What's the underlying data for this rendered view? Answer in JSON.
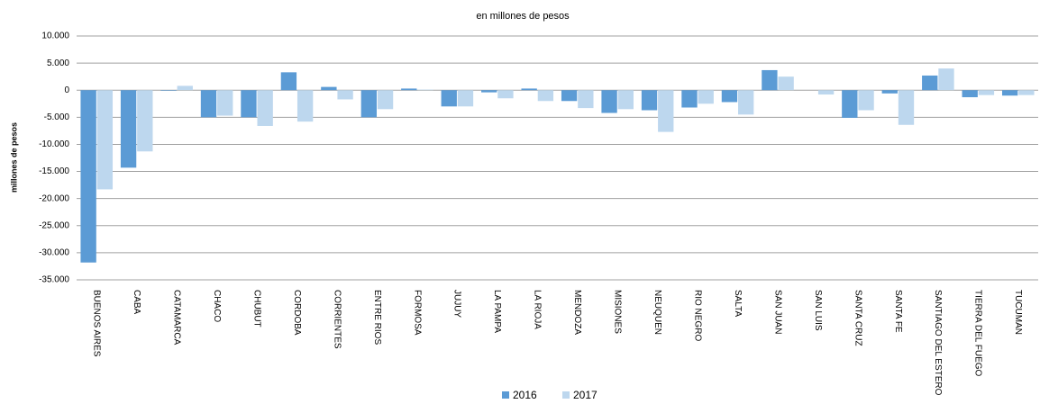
{
  "chart_data": {
    "type": "bar",
    "title": "en millones de pesos",
    "y_label": "millones de pesos",
    "categories": [
      "BUENOS AIRES",
      "CABA",
      "CATAMARCA",
      "CHACO",
      "CHUBUT",
      "CORDOBA",
      "CORRIENTES",
      "ENTRE RIOS",
      "FORMOSA",
      "JUJUY",
      "LA PAMPA",
      "LA RIOJA",
      "MENDOZA",
      "MISIONES",
      "NEUQUEN",
      "RIO NEGRO",
      "SALTA",
      "SAN JUAN",
      "SAN LUIS",
      "SANTA CRUZ",
      "SANTA FE",
      "SANTIAGO DEL ESTERO",
      "TIERRA DEL FUEGO",
      "TUCUMAN"
    ],
    "series": [
      {
        "name": "2016",
        "color": "#5b9bd5",
        "values": [
          -31800,
          -14300,
          -100,
          -5000,
          -5000,
          3300,
          600,
          -5000,
          300,
          -3000,
          -400,
          300,
          -2000,
          -4200,
          -3700,
          -3200,
          -2200,
          3700,
          0,
          -5100,
          -600,
          2700,
          -1300,
          -1000
        ]
      },
      {
        "name": "2017",
        "color": "#bdd7ee",
        "values": [
          -18300,
          -11300,
          800,
          -4700,
          -6600,
          -5800,
          -1700,
          -3500,
          100,
          -3000,
          -1500,
          -2000,
          -3300,
          -3500,
          -7700,
          -2500,
          -4500,
          2500,
          -800,
          -3700,
          -6400,
          4000,
          -900,
          -900
        ]
      }
    ],
    "ylim": [
      -35000,
      10000
    ],
    "yticks": [
      {
        "value": -35000,
        "label": "-35.000"
      },
      {
        "value": -30000,
        "label": "-30.000"
      },
      {
        "value": -25000,
        "label": "-25.000"
      },
      {
        "value": -20000,
        "label": "-20.000"
      },
      {
        "value": -15000,
        "label": "-15.000"
      },
      {
        "value": -10000,
        "label": "-10.000"
      },
      {
        "value": -5000,
        "label": "-5.000"
      },
      0,
      {
        "value": 5000,
        "label": "5.000"
      },
      {
        "value": 10000,
        "label": "10.000"
      }
    ],
    "grid": true,
    "legend": "bottom"
  }
}
